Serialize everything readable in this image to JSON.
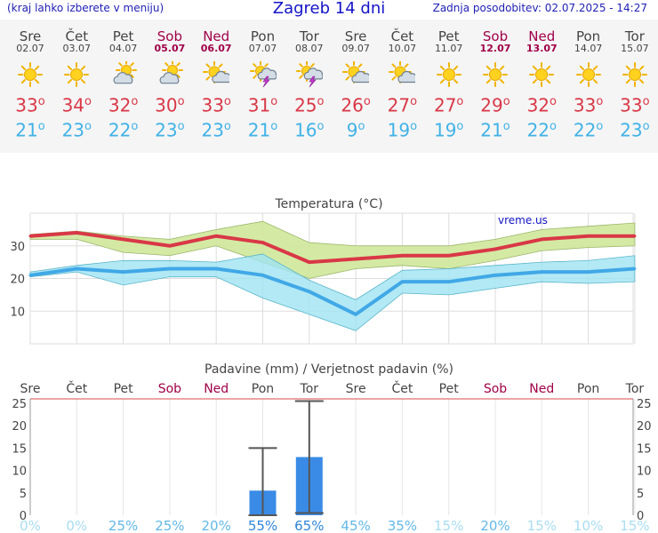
{
  "header": {
    "left_note": "(kraj lahko izberete v meniju)",
    "title": "Zagreb 14 dni",
    "updated": "Zadnja posodobitev: 02.07.2025 - 14:27"
  },
  "days": [
    {
      "name": "Sre",
      "date": "02.07",
      "icon": "sun-icon",
      "max": "33",
      "min": "21",
      "weekend": false
    },
    {
      "name": "Čet",
      "date": "03.07",
      "icon": "sun-icon",
      "max": "34",
      "min": "23",
      "weekend": false
    },
    {
      "name": "Pet",
      "date": "04.07",
      "icon": "partly-cloudy-icon",
      "max": "32",
      "min": "22",
      "weekend": false
    },
    {
      "name": "Sob",
      "date": "05.07",
      "icon": "partly-cloudy-icon",
      "max": "30",
      "min": "23",
      "weekend": true
    },
    {
      "name": "Ned",
      "date": "06.07",
      "icon": "sun-cloud-icon",
      "max": "33",
      "min": "23",
      "weekend": true
    },
    {
      "name": "Pon",
      "date": "07.07",
      "icon": "thunderstorm-icon",
      "max": "31",
      "min": "21",
      "weekend": false
    },
    {
      "name": "Tor",
      "date": "08.07",
      "icon": "thunderstorm-icon",
      "max": "25",
      "min": "16",
      "weekend": false
    },
    {
      "name": "Sre",
      "date": "09.07",
      "icon": "sun-cloud-icon",
      "max": "26",
      "min": "9",
      "weekend": false
    },
    {
      "name": "Čet",
      "date": "10.07",
      "icon": "sun-cloud-icon",
      "max": "27",
      "min": "19",
      "weekend": false
    },
    {
      "name": "Pet",
      "date": "11.07",
      "icon": "sun-icon",
      "max": "27",
      "min": "19",
      "weekend": false
    },
    {
      "name": "Sob",
      "date": "12.07",
      "icon": "sun-icon",
      "max": "29",
      "min": "21",
      "weekend": true
    },
    {
      "name": "Ned",
      "date": "13.07",
      "icon": "sun-icon",
      "max": "32",
      "min": "22",
      "weekend": true
    },
    {
      "name": "Pon",
      "date": "14.07",
      "icon": "sun-icon",
      "max": "33",
      "min": "22",
      "weekend": false
    },
    {
      "name": "Tor",
      "date": "15.07",
      "icon": "sun-icon",
      "max": "33",
      "min": "23",
      "weekend": false
    }
  ],
  "colors": {
    "max_line": "#d93847",
    "min_line": "#41a8e6",
    "max_band": "#cfe89a",
    "min_band": "#9fe3f2",
    "bar": "#3a8be6",
    "weekend": "#a00048",
    "grid": "#dddddd",
    "axis_red": "#d94848",
    "prob_high": "#2e86d9",
    "prob_low": "#a9dcf2"
  },
  "chart_data": [
    {
      "type": "line",
      "title": "Temperatura (°C)",
      "watermark": "vreme.us",
      "categories": [
        "Sre",
        "Čet",
        "Pet",
        "Sob",
        "Ned",
        "Pon",
        "Tor",
        "Sre",
        "Čet",
        "Pet",
        "Sob",
        "Ned",
        "Pon",
        "Tor"
      ],
      "ylim": [
        0,
        40
      ],
      "yticks": [
        10,
        20,
        30
      ],
      "series": [
        {
          "values": [
            33,
            34,
            32,
            30,
            33,
            31,
            25,
            26,
            27,
            27,
            29,
            32,
            33,
            33
          ],
          "band_upper": [
            33.5,
            34.5,
            33,
            32,
            35,
            37.5,
            31,
            30,
            30,
            30,
            32,
            35,
            36,
            37
          ],
          "band_lower": [
            32,
            32,
            28,
            27,
            30,
            25,
            20,
            23,
            24,
            23,
            25.5,
            28.5,
            29.5,
            30
          ]
        },
        {
          "values": [
            21,
            23,
            22,
            23,
            23,
            21,
            16,
            9,
            19,
            19,
            21,
            22,
            22,
            23
          ],
          "band_upper": [
            22,
            24,
            25.5,
            25.5,
            25,
            27.5,
            19.5,
            13.5,
            22.5,
            23,
            24,
            25,
            25.5,
            27
          ],
          "band_lower": [
            20.5,
            22,
            18,
            20.5,
            20.5,
            14,
            9,
            4,
            15.5,
            15,
            17,
            19,
            18.5,
            19
          ]
        }
      ]
    },
    {
      "type": "bar",
      "title": "Padavine (mm) / Verjetnost padavin (%)",
      "categories": [
        "Sre",
        "Čet",
        "Pet",
        "Sob",
        "Ned",
        "Pon",
        "Tor",
        "Sre",
        "Čet",
        "Pet",
        "Sob",
        "Ned",
        "Pon",
        "Tor"
      ],
      "ylim": [
        0,
        26
      ],
      "yticks": [
        0,
        5,
        10,
        15,
        20,
        25
      ],
      "values": [
        0,
        0,
        0,
        0,
        0,
        5.5,
        13,
        0,
        0,
        0,
        0,
        0,
        0,
        0
      ],
      "error_upper": [
        null,
        null,
        null,
        null,
        null,
        15,
        25.5,
        null,
        null,
        null,
        null,
        null,
        null,
        null
      ],
      "error_lower": [
        null,
        null,
        null,
        null,
        null,
        0,
        0.5,
        null,
        null,
        null,
        null,
        null,
        null,
        null
      ],
      "probability": [
        "0%",
        "0%",
        "25%",
        "25%",
        "20%",
        "55%",
        "65%",
        "45%",
        "35%",
        "15%",
        "20%",
        "15%",
        "10%",
        "15%"
      ],
      "probability_values": [
        0,
        0,
        25,
        25,
        20,
        55,
        65,
        45,
        35,
        15,
        20,
        15,
        10,
        15
      ]
    }
  ]
}
